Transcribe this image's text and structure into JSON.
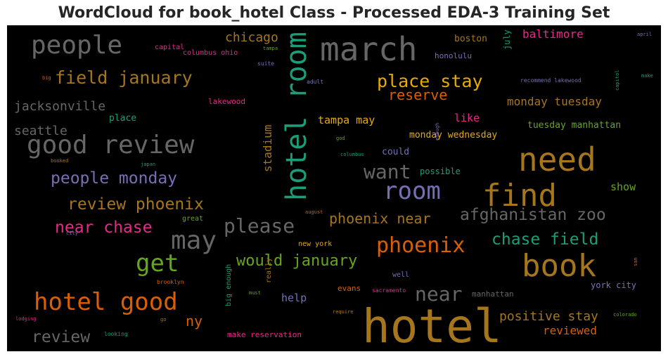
{
  "chart_data": {
    "type": "wordcloud",
    "title": "WordCloud for book_hotel Class - Processed EDA-3 Training Set",
    "background": "#000000",
    "words": [
      {
        "text": "hotel",
        "color": "#a6761d"
      },
      {
        "text": "march",
        "color": "#666666"
      },
      {
        "text": "hotel room",
        "color": "#1b9e77"
      },
      {
        "text": "need",
        "color": "#a6761d"
      },
      {
        "text": "find",
        "color": "#a6761d"
      },
      {
        "text": "book",
        "color": "#a6761d"
      },
      {
        "text": "good review",
        "color": "#666666"
      },
      {
        "text": "people",
        "color": "#666666"
      },
      {
        "text": "may",
        "color": "#666666"
      },
      {
        "text": "room",
        "color": "#7570b3"
      },
      {
        "text": "hotel good",
        "color": "#d95f02"
      },
      {
        "text": "get",
        "color": "#66a61e"
      },
      {
        "text": "phoenix",
        "color": "#d95f02"
      },
      {
        "text": "want",
        "color": "#666666"
      },
      {
        "text": "please",
        "color": "#666666"
      },
      {
        "text": "near",
        "color": "#666666"
      },
      {
        "text": "place stay",
        "color": "#e6ab02"
      },
      {
        "text": "field january",
        "color": "#a6761d"
      },
      {
        "text": "people monday",
        "color": "#7570b3"
      },
      {
        "text": "review phoenix",
        "color": "#a6761d"
      },
      {
        "text": "near chase",
        "color": "#e7298a"
      },
      {
        "text": "chase field",
        "color": "#1b9e77"
      },
      {
        "text": "phoenix near",
        "color": "#a6761d"
      },
      {
        "text": "afghanistan zoo",
        "color": "#666666"
      },
      {
        "text": "would january",
        "color": "#66a61e"
      },
      {
        "text": "review",
        "color": "#666666"
      },
      {
        "text": "reserve",
        "color": "#d95f02"
      },
      {
        "text": "jacksonville",
        "color": "#666666"
      },
      {
        "text": "seattle",
        "color": "#666666"
      },
      {
        "text": "chicago",
        "color": "#a6761d"
      },
      {
        "text": "baltimore",
        "color": "#e7298a"
      },
      {
        "text": "monday tuesday",
        "color": "#a6761d"
      },
      {
        "text": "positive stay",
        "color": "#a6761d"
      },
      {
        "text": "ny",
        "color": "#d95f02"
      },
      {
        "text": "stadium",
        "color": "#a6761d"
      },
      {
        "text": "tampa may",
        "color": "#e6ab02"
      },
      {
        "text": "reviewed",
        "color": "#d95f02"
      },
      {
        "text": "tuesday manhattan",
        "color": "#66a61e"
      },
      {
        "text": "monday wednesday",
        "color": "#e6ab02"
      },
      {
        "text": "like",
        "color": "#e7298a"
      },
      {
        "text": "help",
        "color": "#7570b3"
      },
      {
        "text": "show",
        "color": "#66a61e"
      },
      {
        "text": "boston",
        "color": "#a6761d"
      },
      {
        "text": "york city",
        "color": "#7570b3"
      },
      {
        "text": "could",
        "color": "#7570b3"
      },
      {
        "text": "possible",
        "color": "#1b9e77"
      },
      {
        "text": "place",
        "color": "#1b9e77"
      },
      {
        "text": "july",
        "color": "#1b9e77"
      },
      {
        "text": "lakewood",
        "color": "#e7298a"
      },
      {
        "text": "capital",
        "color": "#e7298a"
      },
      {
        "text": "columbus ohio",
        "color": "#e7298a"
      },
      {
        "text": "honolulu",
        "color": "#7570b3"
      },
      {
        "text": "evans",
        "color": "#d95f02"
      },
      {
        "text": "manhattan",
        "color": "#666666"
      },
      {
        "text": "big enough",
        "color": "#1b9e77"
      },
      {
        "text": "really",
        "color": "#a6761d"
      },
      {
        "text": "make reservation",
        "color": "#e7298a"
      },
      {
        "text": "new york",
        "color": "#e6ab02"
      },
      {
        "text": "great",
        "color": "#66a61e"
      },
      {
        "text": "recommend lakewood",
        "color": "#7570b3"
      },
      {
        "text": "brooklyn",
        "color": "#d95f02"
      },
      {
        "text": "sacramento",
        "color": "#e7298a"
      },
      {
        "text": "well",
        "color": "#7570b3"
      },
      {
        "text": "tampa",
        "color": "#66a61e"
      },
      {
        "text": "suite",
        "color": "#7570b3"
      },
      {
        "text": "adult",
        "color": "#7570b3"
      },
      {
        "text": "big",
        "color": "#d95f02"
      },
      {
        "text": "booked",
        "color": "#a6761d"
      },
      {
        "text": "japan",
        "color": "#1b9e77"
      },
      {
        "text": "god",
        "color": "#66a61e"
      },
      {
        "text": "columbus",
        "color": "#1b9e77"
      },
      {
        "text": "enough",
        "color": "#7570b3"
      },
      {
        "text": "august",
        "color": "#d95f02"
      },
      {
        "text": "city",
        "color": "#7570b3"
      },
      {
        "text": "must",
        "color": "#66a61e"
      },
      {
        "text": "require",
        "color": "#a6761d"
      },
      {
        "text": "lodging",
        "color": "#e7298a"
      },
      {
        "text": "go",
        "color": "#a6761d"
      },
      {
        "text": "looking",
        "color": "#1b9e77"
      },
      {
        "text": "april",
        "color": "#7570b3"
      },
      {
        "text": "make",
        "color": "#1b9e77"
      },
      {
        "text": "capitol",
        "color": "#1b9e77"
      },
      {
        "text": "san",
        "color": "#d95f02"
      },
      {
        "text": "colorado",
        "color": "#66a61e"
      }
    ]
  }
}
